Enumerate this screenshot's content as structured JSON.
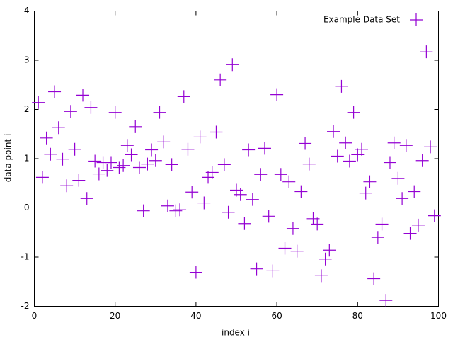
{
  "chart_data": {
    "type": "scatter",
    "xlabel": "index i",
    "ylabel": "data point i",
    "xlim": [
      0,
      100
    ],
    "xticks": [
      0,
      20,
      40,
      60,
      80,
      100
    ],
    "ylim": [
      -2,
      4
    ],
    "yticks": [
      -2,
      -1,
      0,
      1,
      2,
      3,
      4
    ],
    "grid": false,
    "legend": "top-right",
    "series": [
      {
        "name": "Example Data Set",
        "color": "#9400d3",
        "x": [
          1,
          2,
          3,
          4,
          5,
          6,
          7,
          8,
          9,
          10,
          11,
          12,
          13,
          14,
          15,
          16,
          17,
          18,
          19,
          20,
          21,
          22,
          23,
          24,
          25,
          26,
          27,
          28,
          29,
          30,
          31,
          32,
          33,
          34,
          35,
          36,
          37,
          38,
          39,
          40,
          41,
          42,
          43,
          44,
          45,
          46,
          47,
          48,
          49,
          50,
          51,
          52,
          53,
          54,
          55,
          56,
          57,
          58,
          59,
          60,
          61,
          62,
          63,
          64,
          65,
          66,
          67,
          68,
          69,
          70,
          71,
          72,
          73,
          74,
          75,
          76,
          77,
          78,
          79,
          80,
          81,
          82,
          83,
          84,
          85,
          86,
          87,
          88,
          89,
          90,
          91,
          92,
          93,
          94,
          95,
          96,
          97,
          98,
          99
        ],
        "values": [
          2.14,
          0.62,
          1.42,
          1.09,
          2.36,
          1.63,
          0.99,
          0.45,
          1.96,
          1.19,
          0.56,
          2.29,
          0.19,
          2.04,
          0.95,
          0.69,
          0.92,
          0.76,
          0.92,
          1.94,
          0.82,
          0.86,
          1.27,
          1.08,
          1.65,
          0.82,
          -0.06,
          0.89,
          1.18,
          0.96,
          1.94,
          1.34,
          0.04,
          0.88,
          -0.06,
          -0.04,
          2.26,
          1.19,
          0.32,
          -1.31,
          1.44,
          0.1,
          0.62,
          0.72,
          1.54,
          2.6,
          0.88,
          -0.09,
          2.91,
          0.36,
          0.27,
          -0.32,
          1.18,
          0.17,
          -1.24,
          0.68,
          1.21,
          -0.17,
          -1.28,
          2.3,
          0.68,
          -0.82,
          0.53,
          -0.42,
          -0.88,
          0.33,
          1.31,
          0.89,
          -0.22,
          -0.33,
          -1.38,
          -1.04,
          -0.86,
          1.55,
          1.05,
          2.47,
          1.32,
          0.95,
          1.94,
          1.08,
          1.19,
          0.3,
          0.53,
          -1.44,
          -0.6,
          -0.33,
          -1.88,
          0.92,
          1.32,
          0.6,
          0.19,
          1.27,
          -0.52,
          0.33,
          -0.35,
          0.96,
          3.17,
          1.24,
          -0.16
        ]
      }
    ]
  }
}
